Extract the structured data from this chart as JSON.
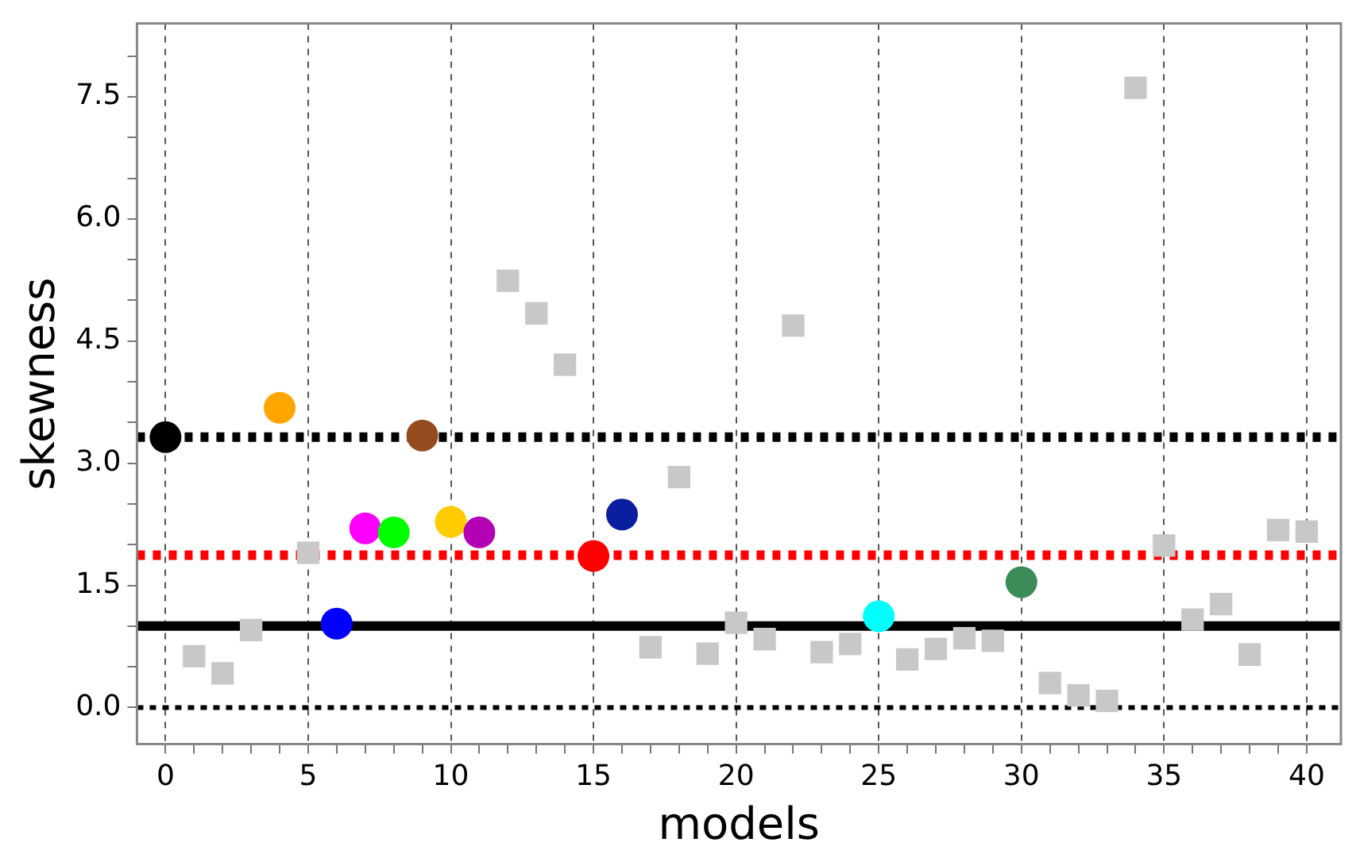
{
  "chart_data": {
    "type": "scatter",
    "xlabel": "models",
    "ylabel": "skewness",
    "xlim": [
      -1,
      41.2
    ],
    "ylim": [
      -0.45,
      8.4
    ],
    "xticks": [
      0,
      {
        "value": 1,
        "label": null
      },
      {
        "value": 2,
        "label": null
      },
      {
        "value": 3,
        "label": null
      },
      {
        "value": 4,
        "label": null
      },
      5,
      {
        "value": 6,
        "label": null
      },
      {
        "value": 7,
        "label": null
      },
      {
        "value": 8,
        "label": null
      },
      {
        "value": 9,
        "label": null
      },
      10,
      {
        "value": 11,
        "label": null
      },
      {
        "value": 12,
        "label": null
      },
      {
        "value": 13,
        "label": null
      },
      {
        "value": 14,
        "label": null
      },
      15,
      {
        "value": 16,
        "label": null
      },
      {
        "value": 17,
        "label": null
      },
      {
        "value": 18,
        "label": null
      },
      {
        "value": 19,
        "label": null
      },
      20,
      {
        "value": 21,
        "label": null
      },
      {
        "value": 22,
        "label": null
      },
      {
        "value": 23,
        "label": null
      },
      {
        "value": 24,
        "label": null
      },
      25,
      {
        "value": 26,
        "label": null
      },
      {
        "value": 27,
        "label": null
      },
      {
        "value": 28,
        "label": null
      },
      {
        "value": 29,
        "label": null
      },
      30,
      {
        "value": 31,
        "label": null
      },
      {
        "value": 32,
        "label": null
      },
      {
        "value": 33,
        "label": null
      },
      {
        "value": 34,
        "label": null
      },
      35,
      {
        "value": 36,
        "label": null
      },
      {
        "value": 37,
        "label": null
      },
      {
        "value": 38,
        "label": null
      },
      {
        "value": 39,
        "label": null
      },
      40
    ],
    "yticks": [
      {
        "value": 0,
        "label": "0.0"
      },
      {
        "value": 0.5,
        "label": null
      },
      {
        "value": 1,
        "label": null
      },
      1.5,
      {
        "value": 2,
        "label": null
      },
      {
        "value": 2.5,
        "label": null
      },
      {
        "value": 3,
        "label": "3.0"
      },
      {
        "value": 3.5,
        "label": null
      },
      {
        "value": 4,
        "label": null
      },
      4.5,
      {
        "value": 5,
        "label": null
      },
      {
        "value": 5.5,
        "label": null
      },
      {
        "value": 6,
        "label": "6.0"
      },
      {
        "value": 6.5,
        "label": null
      },
      {
        "value": 7,
        "label": null
      },
      7.5,
      {
        "value": 8,
        "label": null
      }
    ],
    "grid": "x",
    "legend": false,
    "series": [
      {
        "type": "scatter",
        "marker": "square",
        "color": "#c8c8c8",
        "x": [
          1,
          2,
          3,
          5,
          12,
          13,
          14,
          17,
          18,
          19,
          20,
          21,
          22,
          23,
          24,
          26,
          27,
          28,
          29,
          31,
          32,
          33,
          34,
          35,
          36,
          37,
          38,
          39,
          40
        ],
        "values": [
          0.63,
          0.42,
          0.95,
          1.9,
          5.24,
          4.84,
          4.21,
          0.74,
          2.83,
          0.66,
          1.04,
          0.84,
          4.69,
          0.68,
          0.78,
          0.59,
          0.72,
          0.85,
          0.82,
          0.3,
          0.15,
          0.08,
          7.61,
          1.99,
          1.08,
          1.27,
          0.65,
          2.18,
          2.16
        ]
      },
      {
        "type": "scatter",
        "marker": "circle",
        "colors": [
          "#000000",
          "#ffa500",
          "#0000ff",
          "#ff00ff",
          "#00ff00",
          "#964b1e",
          "#ffcc00",
          "#b400b4",
          "#ff0000",
          "#0a1ea0",
          "#00ffff",
          "#3c8c5a"
        ],
        "x": [
          0,
          4,
          6,
          7,
          8,
          9,
          10,
          11,
          15,
          16,
          25,
          30
        ],
        "values": [
          3.32,
          3.68,
          1.03,
          2.2,
          2.15,
          3.34,
          2.28,
          2.15,
          1.86,
          2.37,
          1.12,
          1.54
        ]
      }
    ],
    "ref_lines": [
      {
        "axis": "y",
        "value": 3.32,
        "color": "#000000",
        "line_style": "dotted"
      },
      {
        "axis": "y",
        "value": 1.87,
        "color": "#ff0000",
        "line_style": "dotted"
      },
      {
        "axis": "y",
        "value": 1.0,
        "color": "#000000",
        "line_style": "solid"
      },
      {
        "axis": "y",
        "value": 0,
        "color": "#000000",
        "line_style": "dashed"
      }
    ]
  }
}
